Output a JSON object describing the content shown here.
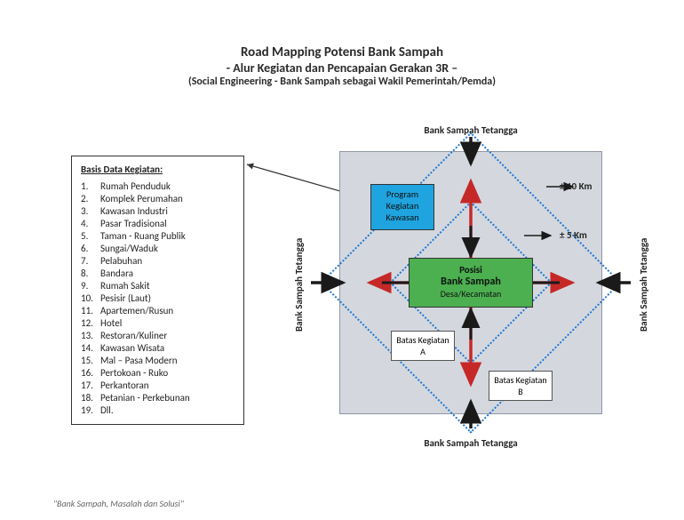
{
  "title": {
    "main": "Road Mapping Potensi Bank Sampah",
    "sub1": "- Alur Kegiatan dan Pencapaian Gerakan 3R –",
    "sub2": "(Social Engineering  - Bank Sampah sebagai Wakil Pemerintah/Pemda)"
  },
  "databox": {
    "heading": "Basis Data Kegiatan:",
    "items": [
      "Rumah Penduduk",
      "Komplek Perumahan",
      "Kawasan Industri",
      "Pasar Tradisional",
      "Taman - Ruang Publik",
      "Sungai/Waduk",
      "Pelabuhan",
      "Bandara",
      "Rumah Sakit",
      "Pesisir (Laut)",
      "Apartemen/Rusun",
      "Hotel",
      "Restoran/Kuliner",
      "Kawasan Wisata",
      "Mal – Pasa Modern",
      "Pertokoan - Ruko",
      "Perkantoran",
      "Petanian - Perkebunan",
      "Dll."
    ]
  },
  "diagram": {
    "background_color": "#d4d8de",
    "diamond_border_color": "#1f77d4",
    "neighbour_label": "Bank Sampah Tetangga",
    "distance_outer": "± 10 Km",
    "distance_inner": "± 5 Km",
    "center": {
      "line1": "Posisi",
      "line2": "Bank Sampah",
      "line3": "Desa/Kecamatan",
      "fill": "#4caf50"
    },
    "program_box": {
      "line1": "Program",
      "line2": "Kegiatan",
      "line3": "Kawasan",
      "fill": "#1fa4e0"
    },
    "batas_a": "Batas Kegiatan A",
    "batas_b": "Batas Kegiatan B",
    "arrows": {
      "black": "#1a1a1a",
      "red": "#c62828"
    }
  },
  "footer": "\"Bank Sampah, Masalah dan Solusi\""
}
